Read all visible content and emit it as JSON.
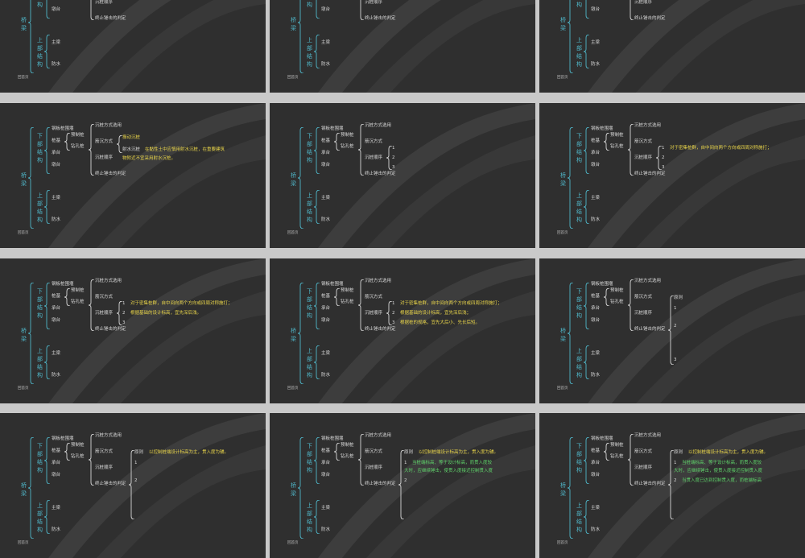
{
  "common": {
    "bridge": "桥梁",
    "substructure": "下部结构",
    "superstructure": "上部结构",
    "cofferdam": "钢板桩围堰",
    "pile_foundation": "桩基",
    "pile_cap": "承台",
    "pier_body": "墩台",
    "precast_pile": "预制桩",
    "bored_pile": "钻孔桩",
    "girder": "主梁",
    "waterproof": "防水",
    "method_select": "沉桩方式选用",
    "driving_method": "筋沉方式",
    "pile_order": "沉桩顺序",
    "stop_criteria": "终止锤击的判定",
    "back_home": "回首页"
  },
  "slides": [
    {
      "index": 1,
      "extra": []
    },
    {
      "index": 2,
      "extra": []
    },
    {
      "index": 3,
      "extra": []
    },
    {
      "index": 4,
      "extra": [
        {
          "id": "hammer",
          "text": "振动沉桩",
          "color": "y"
        },
        {
          "id": "jet",
          "text": "射水沉桩",
          "color": "d"
        },
        {
          "id": "jet_note_1",
          "text": "在黏性土中应慎用射水沉桩，在重要建筑",
          "color": "y"
        },
        {
          "id": "jet_note_2",
          "text": "物附近不宜采用射水沉桩。",
          "color": "y"
        }
      ]
    },
    {
      "index": 5,
      "extra": [
        {
          "id": "n1",
          "text": "1",
          "color": "d"
        },
        {
          "id": "n2",
          "text": "2",
          "color": "d"
        },
        {
          "id": "n3",
          "text": "3",
          "color": "d"
        }
      ]
    },
    {
      "index": 6,
      "extra": [
        {
          "id": "n1",
          "text": "1",
          "color": "d"
        },
        {
          "id": "n2",
          "text": "2",
          "color": "d"
        },
        {
          "id": "n3",
          "text": "3",
          "color": "d"
        },
        {
          "id": "r1",
          "text": "对于密集桩群，自中间向两个方向或四周对称施打；",
          "color": "y"
        }
      ]
    },
    {
      "index": 7,
      "extra": [
        {
          "id": "n1",
          "text": "1",
          "color": "d"
        },
        {
          "id": "n2",
          "text": "2",
          "color": "d"
        },
        {
          "id": "n3",
          "text": "3",
          "color": "d"
        },
        {
          "id": "r1",
          "text": "对于密集桩群，自中间向两个方向或四周对称施打；",
          "color": "y"
        },
        {
          "id": "r2",
          "text": "根据基础的设计标高，宜先深后浅。",
          "color": "y"
        }
      ]
    },
    {
      "index": 8,
      "extra": [
        {
          "id": "n1",
          "text": "1",
          "color": "d"
        },
        {
          "id": "n2",
          "text": "2",
          "color": "d"
        },
        {
          "id": "n3",
          "text": "3",
          "color": "d"
        },
        {
          "id": "r1",
          "text": "对于密集桩群，自中间向两个方向或四周对称施打；",
          "color": "y"
        },
        {
          "id": "r2",
          "text": "根据基础的设计标高，宜先深后浅；",
          "color": "y"
        },
        {
          "id": "r3",
          "text": "根据桩的规格，宜先大后小、先长后短。",
          "color": "y"
        }
      ]
    },
    {
      "index": 9,
      "extra": [
        {
          "id": "principle",
          "text": "原则",
          "color": "d"
        },
        {
          "id": "p1",
          "text": "1",
          "color": "d"
        },
        {
          "id": "p2",
          "text": "2",
          "color": "d"
        },
        {
          "id": "p3",
          "text": "3",
          "color": "d"
        }
      ]
    },
    {
      "index": 10,
      "extra": [
        {
          "id": "principle",
          "text": "原则",
          "color": "d"
        },
        {
          "id": "p1",
          "text": "1",
          "color": "d"
        },
        {
          "id": "p2",
          "text": "2",
          "color": "d"
        },
        {
          "id": "q0",
          "text": "以控制桩端设计标高为主，贯入度为辅。",
          "color": "y"
        }
      ]
    },
    {
      "index": 11,
      "extra": [
        {
          "id": "principle",
          "text": "原则",
          "color": "d"
        },
        {
          "id": "p1",
          "text": "1",
          "color": "d"
        },
        {
          "id": "p2",
          "text": "2",
          "color": "d"
        },
        {
          "id": "q0",
          "text": "以控制桩端设计标高为主，贯入度为辅。",
          "color": "y"
        },
        {
          "id": "q1",
          "text": "当桩端标高、等于设计标高，而贯入度较",
          "color": "g"
        },
        {
          "id": "q1b",
          "text": "大时，应继续锤击，使贯入度接近控制贯入度",
          "color": "g"
        }
      ]
    },
    {
      "index": 12,
      "extra": [
        {
          "id": "principle",
          "text": "原则",
          "color": "d"
        },
        {
          "id": "p1",
          "text": "1",
          "color": "d"
        },
        {
          "id": "p2",
          "text": "2",
          "color": "d"
        },
        {
          "id": "q0",
          "text": "以控制桩端设计标高为主，贯入度为辅。",
          "color": "y"
        },
        {
          "id": "q1",
          "text": "当桩端标高、等于设计标高，而贯入度较",
          "color": "g"
        },
        {
          "id": "q1b",
          "text": "大时，应继续锤击，使贯入度接近控制贯入度",
          "color": "g"
        },
        {
          "id": "q2",
          "text": "当贯入度已达到控制贯入度，而桩端标高",
          "color": "g"
        }
      ]
    }
  ]
}
